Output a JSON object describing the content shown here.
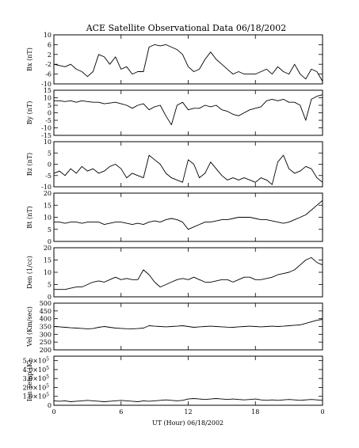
{
  "chart_data": {
    "type": "line",
    "title": "ACE Satellite Observational Data   06/18/2002",
    "xlabel": "UT (Hour)   06/18/2002",
    "x_ticks": [
      "0",
      "6",
      "12",
      "18",
      "0"
    ],
    "xlim": [
      0,
      24
    ],
    "panels": [
      {
        "name": "Bx",
        "ylabel": "Bx (nT)",
        "ylim": [
          -10,
          10
        ],
        "ticks": [
          [
            "10",
            10
          ],
          [
            "6",
            6
          ],
          [
            "2",
            2
          ],
          [
            "-2",
            -2
          ],
          [
            "-6",
            -6
          ],
          [
            "-10",
            -10
          ]
        ],
        "x": [
          0,
          0.5,
          1,
          1.5,
          2,
          2.5,
          3,
          3.5,
          4,
          4.5,
          5,
          5.5,
          6,
          6.5,
          7,
          7.5,
          8,
          8.5,
          9,
          9.5,
          10,
          10.5,
          11,
          11.5,
          12,
          12.5,
          13,
          13.5,
          14,
          14.5,
          15,
          15.5,
          16,
          16.5,
          17,
          17.5,
          18,
          18.5,
          19,
          19.5,
          20,
          20.5,
          21,
          21.5,
          22,
          22.5,
          23,
          23.5,
          24
        ],
        "y": [
          -2,
          -2.5,
          -3,
          -2,
          -4,
          -5,
          -7,
          -5,
          2,
          1,
          -2,
          1,
          -4,
          -3,
          -6,
          -5,
          -5,
          5,
          6,
          5.5,
          6,
          5,
          4,
          2,
          -3,
          -5,
          -4,
          0,
          3,
          0,
          -2,
          -4,
          -6,
          -5,
          -6,
          -6,
          -6,
          -5,
          -4,
          -6,
          -3,
          -5,
          -6,
          -2,
          -6,
          -8,
          -4,
          -5,
          -9
        ]
      },
      {
        "name": "By",
        "ylabel": "By (nT)",
        "ylim": [
          -15,
          15
        ],
        "ticks": [
          [
            "15",
            15
          ],
          [
            "10",
            10
          ],
          [
            "5",
            5
          ],
          [
            "0",
            0
          ],
          [
            "-5",
            -5
          ],
          [
            "-10",
            -10
          ],
          [
            "-15",
            -15
          ]
        ],
        "x": [
          0,
          0.5,
          1,
          1.5,
          2,
          2.5,
          3,
          3.5,
          4,
          4.5,
          5,
          5.5,
          6,
          6.5,
          7,
          7.5,
          8,
          8.5,
          9,
          9.5,
          10,
          10.5,
          11,
          11.5,
          12,
          12.5,
          13,
          13.5,
          14,
          14.5,
          15,
          15.5,
          16,
          16.5,
          17,
          17.5,
          18,
          18.5,
          19,
          19.5,
          20,
          20.5,
          21,
          21.5,
          22,
          22.5,
          23,
          23.5,
          24
        ],
        "y": [
          8,
          8,
          7.5,
          8,
          7,
          8,
          7.5,
          7,
          7,
          6,
          6.5,
          7,
          6,
          5,
          3,
          5,
          6,
          2,
          4,
          5,
          -2,
          -8,
          5,
          7,
          2,
          3,
          3,
          5,
          4,
          5,
          2,
          1,
          -1,
          -2,
          0,
          2,
          3,
          4,
          8,
          9,
          8,
          9,
          7,
          7,
          5,
          -5,
          9,
          11,
          12
        ]
      },
      {
        "name": "Bz",
        "ylabel": "Bz (nT)",
        "ylim": [
          -10,
          10
        ],
        "ticks": [
          [
            "10",
            10
          ],
          [
            "5",
            5
          ],
          [
            "0",
            0
          ],
          [
            "-5",
            -5
          ],
          [
            "-10",
            -10
          ]
        ],
        "x": [
          0,
          0.5,
          1,
          1.5,
          2,
          2.5,
          3,
          3.5,
          4,
          4.5,
          5,
          5.5,
          6,
          6.5,
          7,
          7.5,
          8,
          8.5,
          9,
          9.5,
          10,
          10.5,
          11,
          11.5,
          12,
          12.5,
          13,
          13.5,
          14,
          14.5,
          15,
          15.5,
          16,
          16.5,
          17,
          17.5,
          18,
          18.5,
          19,
          19.5,
          20,
          20.5,
          21,
          21.5,
          22,
          22.5,
          23,
          23.5,
          24
        ],
        "y": [
          -4,
          -3,
          -5,
          -2,
          -4,
          -1,
          -3,
          -2,
          -4,
          -3,
          -1,
          0,
          -2,
          -6,
          -4,
          -5,
          -6,
          4,
          2,
          0,
          -4,
          -6,
          -7,
          -8,
          2,
          0,
          -6,
          -4,
          1,
          -2,
          -5,
          -7,
          -6,
          -7,
          -6,
          -7,
          -8,
          -6,
          -7,
          -9,
          1,
          4,
          -2,
          -4,
          -3,
          -1,
          -2,
          -6,
          -8
        ]
      },
      {
        "name": "Bt",
        "ylabel": "Bt (nT)",
        "ylim": [
          0,
          20
        ],
        "ticks": [
          [
            "20",
            20
          ],
          [
            "15",
            15
          ],
          [
            "10",
            10
          ],
          [
            "5",
            5
          ],
          [
            "0",
            0
          ]
        ],
        "x": [
          0,
          0.5,
          1,
          1.5,
          2,
          2.5,
          3,
          3.5,
          4,
          4.5,
          5,
          5.5,
          6,
          6.5,
          7,
          7.5,
          8,
          8.5,
          9,
          9.5,
          10,
          10.5,
          11,
          11.5,
          12,
          12.5,
          13,
          13.5,
          14,
          14.5,
          15,
          15.5,
          16,
          16.5,
          17,
          17.5,
          18,
          18.5,
          19,
          19.5,
          20,
          20.5,
          21,
          21.5,
          22,
          22.5,
          23,
          23.5,
          24
        ],
        "y": [
          8,
          8,
          7.5,
          8,
          8,
          7.5,
          8,
          8,
          8,
          7,
          7.5,
          8,
          8,
          7.5,
          7,
          7.5,
          7,
          8,
          8.5,
          8,
          9,
          9.5,
          9,
          8,
          5,
          6,
          7,
          8,
          8,
          8.5,
          9,
          9,
          9.5,
          10,
          10,
          10,
          9.5,
          9,
          9,
          8.5,
          8,
          7.5,
          8,
          9,
          10,
          11,
          13,
          15,
          17
        ]
      },
      {
        "name": "Den",
        "ylabel": "Den (1/cc)",
        "ylim": [
          0,
          20
        ],
        "ticks": [
          [
            "20",
            20
          ],
          [
            "15",
            15
          ],
          [
            "10",
            10
          ],
          [
            "5",
            5
          ],
          [
            "0",
            0
          ]
        ],
        "x": [
          0,
          0.5,
          1,
          1.5,
          2,
          2.5,
          3,
          3.5,
          4,
          4.5,
          5,
          5.5,
          6,
          6.5,
          7,
          7.5,
          8,
          8.5,
          9,
          9.5,
          10,
          10.5,
          11,
          11.5,
          12,
          12.5,
          13,
          13.5,
          14,
          14.5,
          15,
          15.5,
          16,
          16.5,
          17,
          17.5,
          18,
          18.5,
          19,
          19.5,
          20,
          20.5,
          21,
          21.5,
          22,
          22.5,
          23,
          23.5,
          24
        ],
        "y": [
          3,
          3,
          3,
          3.5,
          4,
          4,
          5,
          6,
          6.5,
          6,
          7,
          8,
          7,
          7.5,
          7,
          7,
          11,
          9,
          6,
          4,
          5,
          6,
          7,
          7.5,
          7,
          8,
          7,
          6,
          6,
          6.5,
          7,
          7,
          6,
          7,
          8,
          8,
          7,
          7,
          7.5,
          8,
          9,
          9.5,
          10,
          11,
          13,
          15,
          16,
          14,
          13
        ]
      },
      {
        "name": "Vel",
        "ylabel": "Vel (Km/sec)",
        "ylim": [
          200,
          500
        ],
        "ticks": [
          [
            "500",
            500
          ],
          [
            "450",
            450
          ],
          [
            "400",
            400
          ],
          [
            "350",
            350
          ],
          [
            "300",
            300
          ],
          [
            "250",
            250
          ],
          [
            "200",
            200
          ]
        ],
        "x": [
          0,
          0.5,
          1,
          1.5,
          2,
          2.5,
          3,
          3.5,
          4,
          4.5,
          5,
          5.5,
          6,
          6.5,
          7,
          7.5,
          8,
          8.5,
          9,
          9.5,
          10,
          10.5,
          11,
          11.5,
          12,
          12.5,
          13,
          13.5,
          14,
          14.5,
          15,
          15.5,
          16,
          16.5,
          17,
          17.5,
          18,
          18.5,
          19,
          19.5,
          20,
          20.5,
          21,
          21.5,
          22,
          22.5,
          23,
          23.5,
          24
        ],
        "y": [
          350,
          348,
          345,
          342,
          340,
          338,
          335,
          337,
          345,
          350,
          345,
          340,
          338,
          336,
          335,
          337,
          340,
          355,
          352,
          350,
          348,
          350,
          352,
          355,
          350,
          345,
          348,
          350,
          352,
          350,
          348,
          346,
          345,
          348,
          350,
          352,
          350,
          348,
          350,
          352,
          350,
          352,
          355,
          358,
          360,
          370,
          380,
          390,
          395
        ]
      },
      {
        "name": "Ion Temp",
        "ylabel": "Ion Temp (K)",
        "ylim": [
          0,
          5.5
        ],
        "ticks": [
          [
            "5.0×10",
            5.0
          ],
          [
            "4.0×10",
            4.0
          ],
          [
            "3.0×10",
            3.0
          ],
          [
            "2.0×10",
            2.0
          ],
          [
            "1.0×10",
            1.0
          ],
          [
            "0",
            0
          ]
        ],
        "tick_exponent": "5",
        "x": [
          0,
          0.5,
          1,
          1.5,
          2,
          2.5,
          3,
          3.5,
          4,
          4.5,
          5,
          5.5,
          6,
          6.5,
          7,
          7.5,
          8,
          8.5,
          9,
          9.5,
          10,
          10.5,
          11,
          11.5,
          12,
          12.5,
          13,
          13.5,
          14,
          14.5,
          15,
          15.5,
          16,
          16.5,
          17,
          17.5,
          18,
          18.5,
          19,
          19.5,
          20,
          20.5,
          21,
          21.5,
          22,
          22.5,
          23,
          23.5,
          24
        ],
        "y": [
          0.5,
          0.45,
          0.5,
          0.4,
          0.45,
          0.5,
          0.55,
          0.5,
          0.45,
          0.4,
          0.45,
          0.5,
          0.55,
          0.5,
          0.45,
          0.4,
          0.5,
          0.45,
          0.5,
          0.55,
          0.6,
          0.55,
          0.5,
          0.55,
          0.7,
          0.75,
          0.7,
          0.65,
          0.7,
          0.75,
          0.7,
          0.65,
          0.7,
          0.65,
          0.6,
          0.65,
          0.7,
          0.6,
          0.55,
          0.6,
          0.55,
          0.6,
          0.65,
          0.6,
          0.55,
          0.6,
          0.65,
          0.6,
          0.55
        ]
      }
    ]
  }
}
